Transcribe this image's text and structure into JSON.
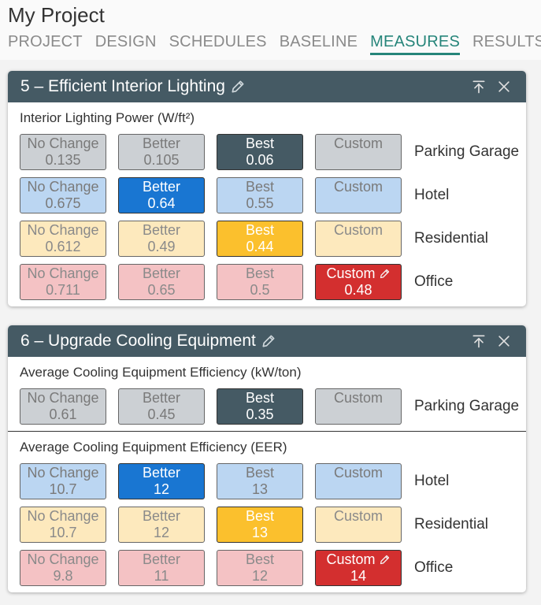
{
  "header": {
    "title": "My Project",
    "tabs": [
      {
        "label": "PROJECT",
        "active": false
      },
      {
        "label": "DESIGN",
        "active": false
      },
      {
        "label": "SCHEDULES",
        "active": false
      },
      {
        "label": "BASELINE",
        "active": false
      },
      {
        "label": "MEASURES",
        "active": true
      },
      {
        "label": "RESULTS",
        "active": false
      }
    ]
  },
  "measures": [
    {
      "title": "5 – Efficient Interior Lighting",
      "groups": [
        {
          "label": "Interior Lighting Power (W/ft²)",
          "rows": [
            {
              "name": "Parking Garage",
              "color": "gray",
              "selected": 2,
              "options": [
                {
                  "label": "No Change",
                  "value": 0.135
                },
                {
                  "label": "Better",
                  "value": 0.105
                },
                {
                  "label": "Best",
                  "value": 0.06
                },
                {
                  "label": "Custom"
                }
              ]
            },
            {
              "name": "Hotel",
              "color": "blue",
              "selected": 1,
              "options": [
                {
                  "label": "No Change",
                  "value": 0.675
                },
                {
                  "label": "Better",
                  "value": 0.64
                },
                {
                  "label": "Best",
                  "value": 0.55
                },
                {
                  "label": "Custom"
                }
              ]
            },
            {
              "name": "Residential",
              "color": "yellow",
              "selected": 2,
              "options": [
                {
                  "label": "No Change",
                  "value": 0.612
                },
                {
                  "label": "Better",
                  "value": 0.49
                },
                {
                  "label": "Best",
                  "value": 0.44
                },
                {
                  "label": "Custom"
                }
              ]
            },
            {
              "name": "Office",
              "color": "red",
              "selected": 3,
              "options": [
                {
                  "label": "No Change",
                  "value": 0.711
                },
                {
                  "label": "Better",
                  "value": 0.65
                },
                {
                  "label": "Best",
                  "value": 0.5
                },
                {
                  "label": "Custom",
                  "value": 0.48
                }
              ]
            }
          ]
        }
      ]
    },
    {
      "title": "6 – Upgrade Cooling Equipment",
      "groups": [
        {
          "label": "Average Cooling Equipment Efficiency (kW/ton)",
          "rows": [
            {
              "name": "Parking Garage",
              "color": "gray",
              "selected": 2,
              "options": [
                {
                  "label": "No Change",
                  "value": 0.61
                },
                {
                  "label": "Better",
                  "value": 0.45
                },
                {
                  "label": "Best",
                  "value": 0.35
                },
                {
                  "label": "Custom"
                }
              ]
            }
          ]
        },
        {
          "label": "Average Cooling Equipment Efficiency (EER)",
          "rows": [
            {
              "name": "Hotel",
              "color": "blue",
              "selected": 1,
              "options": [
                {
                  "label": "No Change",
                  "value": 10.7
                },
                {
                  "label": "Better",
                  "value": 12
                },
                {
                  "label": "Best",
                  "value": 13
                },
                {
                  "label": "Custom"
                }
              ]
            },
            {
              "name": "Residential",
              "color": "yellow",
              "selected": 2,
              "options": [
                {
                  "label": "No Change",
                  "value": 10.7
                },
                {
                  "label": "Better",
                  "value": 12
                },
                {
                  "label": "Best",
                  "value": 13
                },
                {
                  "label": "Custom"
                }
              ]
            },
            {
              "name": "Office",
              "color": "red",
              "selected": 3,
              "options": [
                {
                  "label": "No Change",
                  "value": 9.8
                },
                {
                  "label": "Better",
                  "value": 11
                },
                {
                  "label": "Best",
                  "value": 12
                },
                {
                  "label": "Custom",
                  "value": 14
                }
              ]
            }
          ]
        }
      ]
    }
  ]
}
